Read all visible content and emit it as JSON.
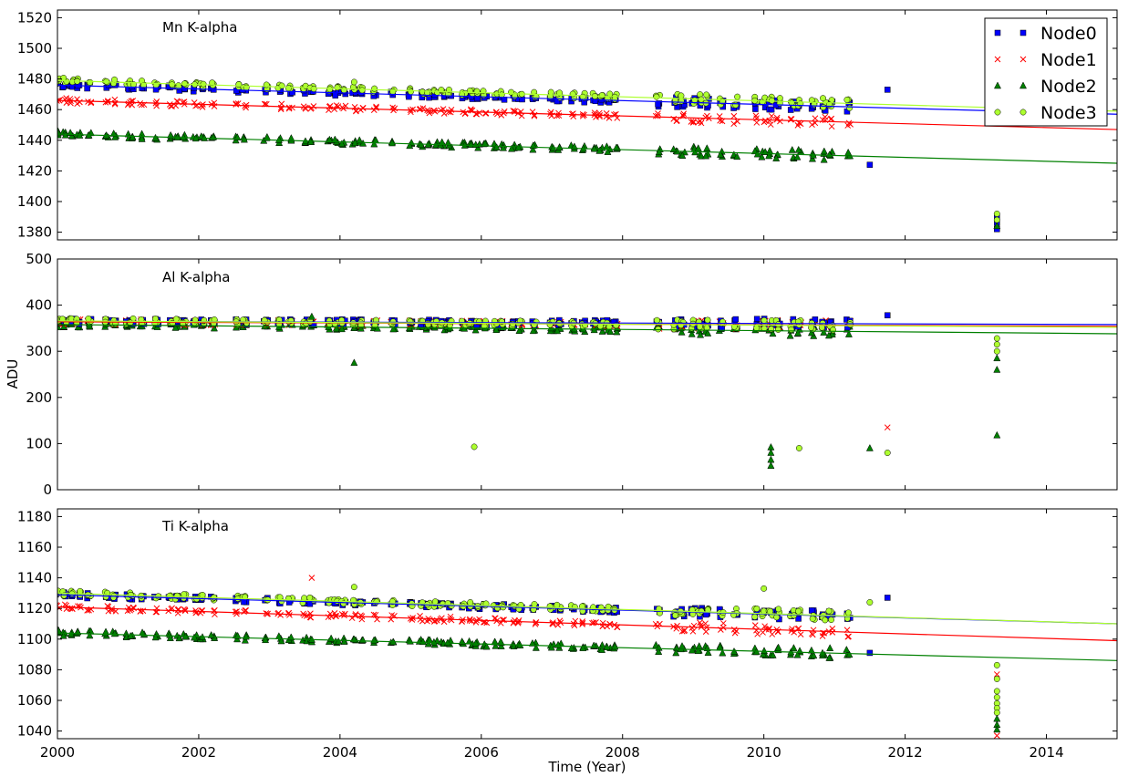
{
  "chart_data": {
    "type": "scatter",
    "xlabel": "Time (Year)",
    "ylabel": "ADU",
    "xlim": [
      2000,
      2015
    ],
    "xticks": [
      2000,
      2002,
      2004,
      2006,
      2008,
      2010,
      2012,
      2014
    ],
    "legend_position": "top-right",
    "series_styles": [
      {
        "name": "Node0",
        "marker": "square",
        "color": "#0000ff"
      },
      {
        "name": "Node1",
        "marker": "x",
        "color": "#ff0000"
      },
      {
        "name": "Node2",
        "marker": "triangle",
        "color": "#008000"
      },
      {
        "name": "Node3",
        "marker": "circle",
        "color": "#adff2f"
      }
    ],
    "panels": [
      {
        "title": "Mn K-alpha",
        "ylim": [
          1375,
          1525
        ],
        "yticks": [
          1380,
          1400,
          1420,
          1440,
          1460,
          1480,
          1500,
          1520
        ],
        "fits": [
          {
            "series": "Node0",
            "from": [
              2000,
              1476
            ],
            "to": [
              2015,
              1457
            ]
          },
          {
            "series": "Node1",
            "from": [
              2000,
              1466
            ],
            "to": [
              2015,
              1447
            ]
          },
          {
            "series": "Node2",
            "from": [
              2000,
              1444
            ],
            "to": [
              2015,
              1425
            ]
          },
          {
            "series": "Node3",
            "from": [
              2000,
              1479
            ],
            "to": [
              2015,
              1459
            ]
          }
        ],
        "outliers": [
          {
            "series": "Node0",
            "x": 2011.5,
            "y": 1424
          },
          {
            "series": "Node0",
            "x": 2011.75,
            "y": 1473
          },
          {
            "series": "Node0",
            "x": 2013.3,
            "y": 1382
          },
          {
            "series": "Node0",
            "x": 2013.3,
            "y": 1386
          },
          {
            "series": "Node0",
            "x": 2013.3,
            "y": 1390
          },
          {
            "series": "Node3",
            "x": 2004.2,
            "y": 1478
          },
          {
            "series": "Node3",
            "x": 2013.3,
            "y": 1388
          },
          {
            "series": "Node3",
            "x": 2013.3,
            "y": 1392
          },
          {
            "series": "Node2",
            "x": 2013.3,
            "y": 1384
          }
        ]
      },
      {
        "title": "Al K-alpha",
        "ylim": [
          0,
          500
        ],
        "yticks": [
          0,
          100,
          200,
          300,
          400,
          500
        ],
        "fits": [
          {
            "series": "Node0",
            "from": [
              2000,
              365
            ],
            "to": [
              2015,
              358
            ]
          },
          {
            "series": "Node1",
            "from": [
              2000,
              364
            ],
            "to": [
              2015,
              354
            ]
          },
          {
            "series": "Node2",
            "from": [
              2000,
              358
            ],
            "to": [
              2015,
              338
            ]
          },
          {
            "series": "Node3",
            "from": [
              2000,
              366
            ],
            "to": [
              2015,
              352
            ]
          }
        ],
        "outliers": [
          {
            "series": "Node2",
            "x": 2003.6,
            "y": 375
          },
          {
            "series": "Node2",
            "x": 2004.2,
            "y": 275
          },
          {
            "series": "Node3",
            "x": 2005.9,
            "y": 93
          },
          {
            "series": "Node2",
            "x": 2010.1,
            "y": 92
          },
          {
            "series": "Node2",
            "x": 2010.1,
            "y": 80
          },
          {
            "series": "Node2",
            "x": 2010.1,
            "y": 65
          },
          {
            "series": "Node2",
            "x": 2010.1,
            "y": 52
          },
          {
            "series": "Node3",
            "x": 2010.5,
            "y": 90
          },
          {
            "series": "Node2",
            "x": 2011.5,
            "y": 90
          },
          {
            "series": "Node3",
            "x": 2011.75,
            "y": 80
          },
          {
            "series": "Node1",
            "x": 2011.75,
            "y": 135
          },
          {
            "series": "Node0",
            "x": 2011.75,
            "y": 378
          },
          {
            "series": "Node2",
            "x": 2013.3,
            "y": 118
          },
          {
            "series": "Node2",
            "x": 2013.3,
            "y": 260
          },
          {
            "series": "Node2",
            "x": 2013.3,
            "y": 285
          },
          {
            "series": "Node3",
            "x": 2013.3,
            "y": 300
          },
          {
            "series": "Node3",
            "x": 2013.3,
            "y": 315
          },
          {
            "series": "Node3",
            "x": 2013.3,
            "y": 328
          }
        ]
      },
      {
        "title": "Ti K-alpha",
        "ylim": [
          1035,
          1185
        ],
        "yticks": [
          1040,
          1060,
          1080,
          1100,
          1120,
          1140,
          1160,
          1180
        ],
        "fits": [
          {
            "series": "Node0",
            "from": [
              2000,
              1129
            ],
            "to": [
              2015,
              1110
            ]
          },
          {
            "series": "Node1",
            "from": [
              2000,
              1121
            ],
            "to": [
              2015,
              1099
            ]
          },
          {
            "series": "Node2",
            "from": [
              2000,
              1104
            ],
            "to": [
              2015,
              1086
            ]
          },
          {
            "series": "Node3",
            "from": [
              2000,
              1130
            ],
            "to": [
              2015,
              1110
            ]
          }
        ],
        "outliers": [
          {
            "series": "Node1",
            "x": 2003.6,
            "y": 1140
          },
          {
            "series": "Node3",
            "x": 2004.2,
            "y": 1134
          },
          {
            "series": "Node3",
            "x": 2010.0,
            "y": 1133
          },
          {
            "series": "Node0",
            "x": 2011.5,
            "y": 1091
          },
          {
            "series": "Node3",
            "x": 2011.5,
            "y": 1124
          },
          {
            "series": "Node0",
            "x": 2011.75,
            "y": 1127
          },
          {
            "series": "Node3",
            "x": 2013.3,
            "y": 1083
          },
          {
            "series": "Node1",
            "x": 2013.3,
            "y": 1077
          },
          {
            "series": "Node3",
            "x": 2013.3,
            "y": 1074
          },
          {
            "series": "Node3",
            "x": 2013.3,
            "y": 1066
          },
          {
            "series": "Node3",
            "x": 2013.3,
            "y": 1062
          },
          {
            "series": "Node3",
            "x": 2013.3,
            "y": 1058
          },
          {
            "series": "Node3",
            "x": 2013.3,
            "y": 1055
          },
          {
            "series": "Node3",
            "x": 2013.3,
            "y": 1052
          },
          {
            "series": "Node2",
            "x": 2013.3,
            "y": 1048
          },
          {
            "series": "Node2",
            "x": 2013.3,
            "y": 1044
          },
          {
            "series": "Node2",
            "x": 2013.3,
            "y": 1041
          },
          {
            "series": "Node1",
            "x": 2013.3,
            "y": 1037
          }
        ]
      }
    ],
    "observation_years": [
      2000.0,
      2000.1,
      2000.2,
      2000.3,
      2000.45,
      2000.7,
      2000.8,
      2001.0,
      2001.05,
      2001.2,
      2001.4,
      2001.6,
      2001.7,
      2001.8,
      2001.95,
      2002.05,
      2002.2,
      2002.55,
      2002.65,
      2002.95,
      2003.15,
      2003.3,
      2003.5,
      2003.6,
      2003.85,
      2003.95,
      2004.05,
      2004.2,
      2004.3,
      2004.5,
      2004.75,
      2005.0,
      2005.15,
      2005.25,
      2005.35,
      2005.45,
      2005.55,
      2005.75,
      2005.85,
      2005.95,
      2006.05,
      2006.2,
      2006.3,
      2006.45,
      2006.55,
      2006.75,
      2007.0,
      2007.1,
      2007.3,
      2007.45,
      2007.6,
      2007.7,
      2007.8,
      2007.9,
      2008.5,
      2008.75,
      2008.85,
      2009.0,
      2009.1,
      2009.2,
      2009.4,
      2009.6,
      2009.9,
      2010.0,
      2010.1,
      2010.2,
      2010.4,
      2010.5,
      2010.7,
      2010.85,
      2010.95,
      2011.2
    ]
  }
}
